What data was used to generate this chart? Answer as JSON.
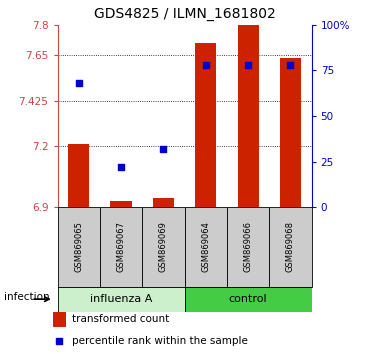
{
  "title": "GDS4825 / ILMN_1681802",
  "samples": [
    "GSM869065",
    "GSM869067",
    "GSM869069",
    "GSM869064",
    "GSM869066",
    "GSM869068"
  ],
  "group_labels": [
    "influenza A",
    "control"
  ],
  "bar_color": "#cc2200",
  "dot_color": "#0000cc",
  "transformed_counts": [
    7.21,
    6.93,
    6.945,
    7.71,
    7.8,
    7.635
  ],
  "percentile_ranks": [
    68,
    22,
    32,
    78,
    78,
    78
  ],
  "y_min": 6.9,
  "y_max": 7.8,
  "y_ticks": [
    6.9,
    7.2,
    7.425,
    7.65,
    7.8
  ],
  "y_tick_labels": [
    "6.9",
    "7.2",
    "7.425",
    "7.65",
    "7.8"
  ],
  "y2_ticks": [
    0,
    25,
    50,
    75,
    100
  ],
  "y2_tick_labels": [
    "0",
    "25",
    "50",
    "75",
    "100%"
  ],
  "dotted_lines": [
    7.2,
    7.425,
    7.65
  ],
  "bar_width": 0.5,
  "dot_size": 22,
  "infection_label": "infection",
  "legend_bar_label": "transformed count",
  "legend_dot_label": "percentile rank within the sample",
  "left_tick_color": "#cc4444",
  "right_tick_color": "#0000cc",
  "title_fontsize": 10,
  "tick_fontsize": 7.5,
  "sample_fontsize": 6.0,
  "group_fontsize": 8,
  "legend_fontsize": 7.5,
  "infection_fontsize": 7.5,
  "influenza_color": "#ccf0cc",
  "control_color": "#44cc44",
  "sample_box_color": "#cccccc"
}
